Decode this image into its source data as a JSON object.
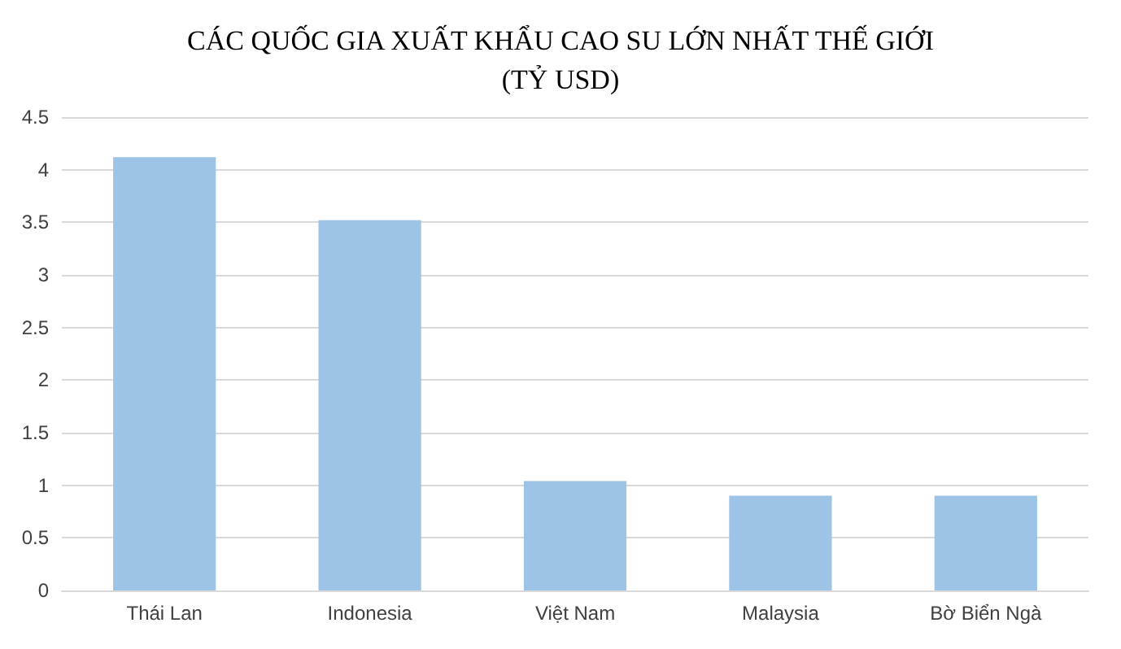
{
  "chart_data": {
    "type": "bar",
    "title": "CÁC QUỐC GIA XUẤT KHẨU CAO SU LỚN NHẤT THẾ GIỚI\n(TỶ USD)",
    "categories": [
      "Thái Lan",
      "Indonesia",
      "Việt Nam",
      "Malaysia",
      "Bờ Biển Ngà"
    ],
    "values": [
      4.12,
      3.52,
      1.04,
      0.9,
      0.9
    ],
    "color": "#9dc3e6",
    "ylim": [
      0,
      4.5
    ],
    "yticks": [
      0,
      0.5,
      1,
      1.5,
      2,
      2.5,
      3,
      3.5,
      4,
      4.5
    ],
    "grid": "y"
  }
}
